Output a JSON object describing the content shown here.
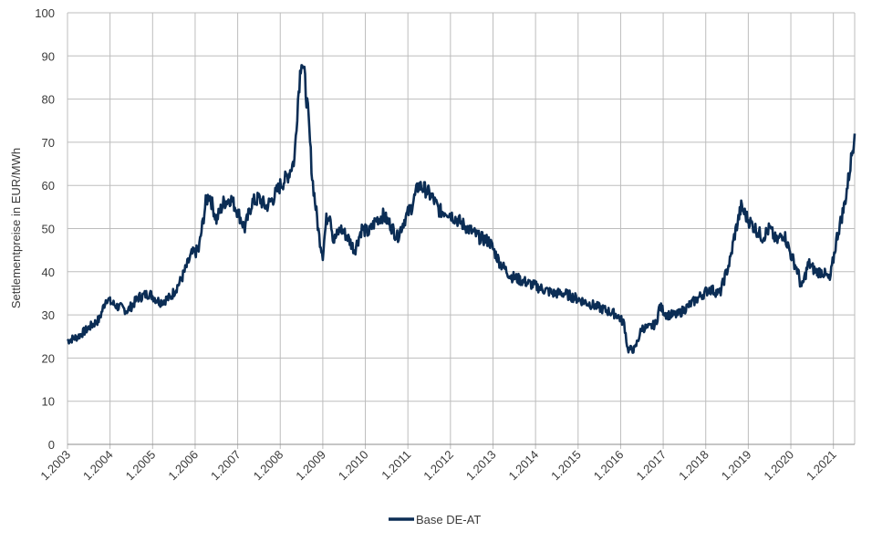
{
  "chart_data": {
    "type": "line",
    "title": "",
    "xlabel": "",
    "ylabel": "Settlementpreise in EUR/MWh",
    "ylim": [
      0,
      100
    ],
    "y_ticks": [
      0,
      10,
      20,
      30,
      40,
      50,
      60,
      70,
      80,
      90,
      100
    ],
    "x_tick_labels": [
      "1.2003",
      "1.2004",
      "1.2005",
      "1.2006",
      "1.2007",
      "1.2008",
      "1.2009",
      "1.2010",
      "1.2011",
      "1.2012",
      "1.2013",
      "1.2014",
      "1.2015",
      "1.2016",
      "1.2017",
      "1.2018",
      "1.2019",
      "1.2020",
      "1.2021"
    ],
    "xlim": [
      "2003-01",
      "2021-07"
    ],
    "grid": true,
    "legend_position": "bottom-center",
    "series_color": "#0b2d55",
    "series": [
      {
        "name": "Base DE-AT",
        "x": [
          "2003-01",
          "2003-04",
          "2003-07",
          "2003-10",
          "2003-12",
          "2004-01",
          "2004-03",
          "2004-06",
          "2004-09",
          "2004-12",
          "2005-03",
          "2005-06",
          "2005-09",
          "2005-12",
          "2006-02",
          "2006-04",
          "2006-05",
          "2006-07",
          "2006-09",
          "2006-11",
          "2007-01",
          "2007-03",
          "2007-05",
          "2007-07",
          "2007-09",
          "2007-11",
          "2008-01",
          "2008-03",
          "2008-05",
          "2008-06",
          "2008-07",
          "2008-08",
          "2008-09",
          "2008-10",
          "2008-11",
          "2008-12",
          "2009-01",
          "2009-02",
          "2009-03",
          "2009-04",
          "2009-06",
          "2009-08",
          "2009-10",
          "2009-12",
          "2010-02",
          "2010-04",
          "2010-06",
          "2010-08",
          "2010-10",
          "2010-12",
          "2011-02",
          "2011-04",
          "2011-06",
          "2011-08",
          "2011-10",
          "2011-12",
          "2012-03",
          "2012-06",
          "2012-09",
          "2012-12",
          "2013-03",
          "2013-06",
          "2013-09",
          "2013-12",
          "2014-03",
          "2014-06",
          "2014-09",
          "2014-12",
          "2015-03",
          "2015-06",
          "2015-09",
          "2015-12",
          "2016-02",
          "2016-03",
          "2016-05",
          "2016-07",
          "2016-09",
          "2016-11",
          "2016-12",
          "2017-02",
          "2017-05",
          "2017-08",
          "2017-11",
          "2018-02",
          "2018-05",
          "2018-08",
          "2018-09",
          "2018-11",
          "2019-01",
          "2019-03",
          "2019-05",
          "2019-07",
          "2019-09",
          "2019-11",
          "2020-01",
          "2020-03",
          "2020-04",
          "2020-06",
          "2020-08",
          "2020-10",
          "2020-12",
          "2021-02",
          "2021-04",
          "2021-05",
          "2021-06",
          "2021-07"
        ],
        "values": [
          24,
          25,
          27,
          29,
          34,
          33,
          32,
          31,
          34,
          35,
          33,
          34,
          38,
          44,
          45,
          56,
          58,
          52,
          56,
          57,
          54,
          50,
          56,
          57,
          55,
          57,
          60,
          62,
          66,
          80,
          90,
          84,
          75,
          62,
          55,
          48,
          44,
          52,
          54,
          47,
          50,
          48,
          45,
          50,
          49,
          52,
          53,
          51,
          48,
          52,
          55,
          60,
          59,
          57,
          54,
          54,
          52,
          50,
          48,
          47,
          42,
          39,
          38,
          37,
          36,
          35,
          35,
          34,
          33,
          32,
          31,
          30,
          28,
          22,
          22,
          27,
          27,
          28,
          32,
          30,
          30,
          32,
          34,
          36,
          35,
          43,
          48,
          55,
          52,
          50,
          48,
          50,
          47,
          49,
          44,
          40,
          36,
          42,
          40,
          40,
          38,
          48,
          55,
          60,
          66,
          72
        ]
      }
    ]
  }
}
